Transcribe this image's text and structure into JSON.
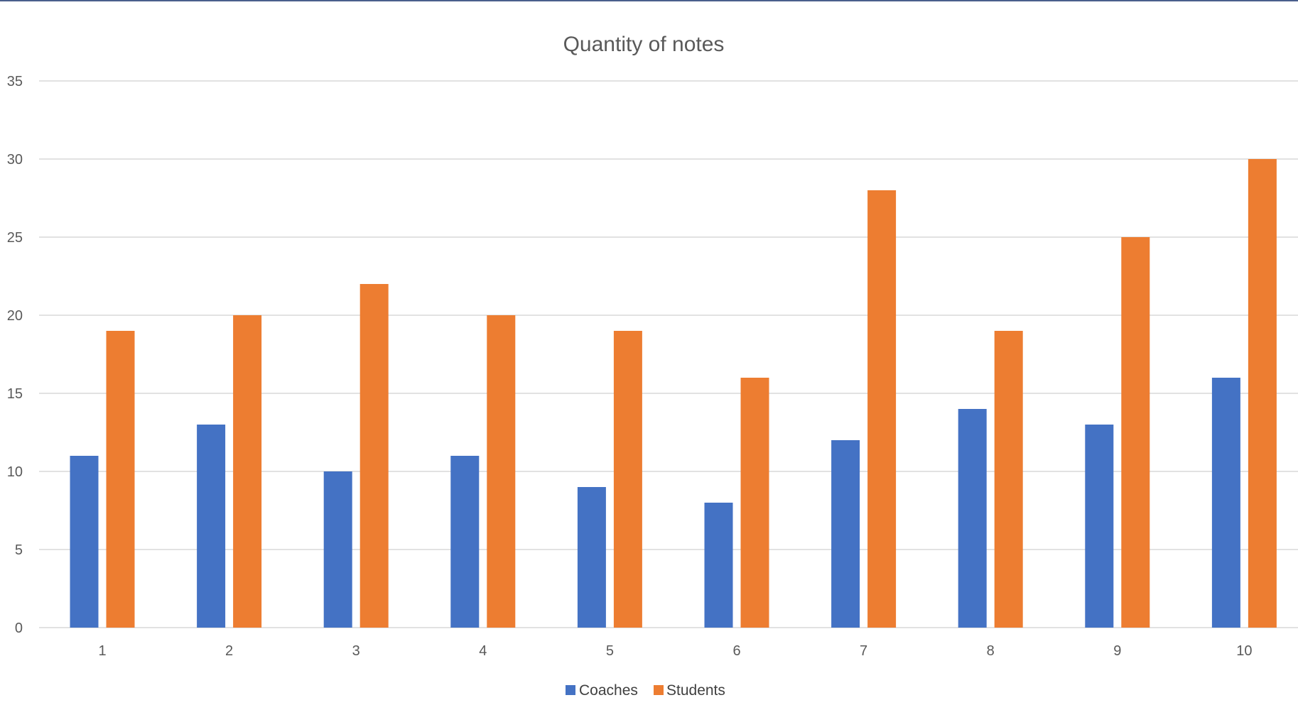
{
  "chart_data": {
    "type": "bar",
    "title": "Quantity of notes",
    "xlabel": "",
    "ylabel": "",
    "categories": [
      "1",
      "2",
      "3",
      "4",
      "5",
      "6",
      "7",
      "8",
      "9",
      "10"
    ],
    "series": [
      {
        "name": "Coaches",
        "color": "#4472c4",
        "values": [
          11,
          13,
          10,
          11,
          9,
          8,
          12,
          14,
          13,
          16
        ]
      },
      {
        "name": "Students",
        "color": "#ed7d31",
        "values": [
          19,
          20,
          22,
          20,
          19,
          16,
          28,
          19,
          25,
          30
        ]
      }
    ],
    "ylim": [
      0,
      35
    ],
    "yticks": [
      "0",
      "5",
      "10",
      "15",
      "20",
      "25",
      "30",
      "35"
    ],
    "grid": true,
    "legend_position": "bottom"
  }
}
